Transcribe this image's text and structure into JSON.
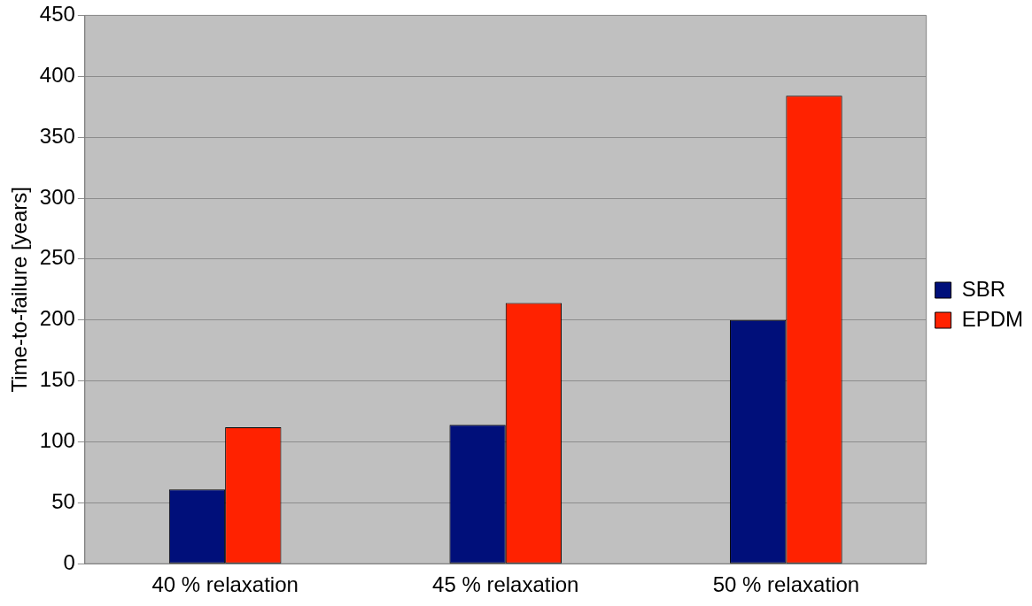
{
  "chart_data": {
    "type": "bar",
    "ylabel": "Time-to-failure [years]",
    "categories": [
      "40 % relaxation",
      "45 % relaxation",
      "50 % relaxation"
    ],
    "series": [
      {
        "name": "SBR",
        "color": "#000f7a",
        "values": [
          61,
          114,
          200
        ]
      },
      {
        "name": "EPDM",
        "color": "#ff2200",
        "values": [
          112,
          214,
          384
        ]
      }
    ],
    "ylim": [
      0,
      450
    ],
    "yticks": [
      0,
      50,
      100,
      150,
      200,
      250,
      300,
      350,
      400,
      450
    ],
    "grid": "y",
    "legend": "right"
  }
}
